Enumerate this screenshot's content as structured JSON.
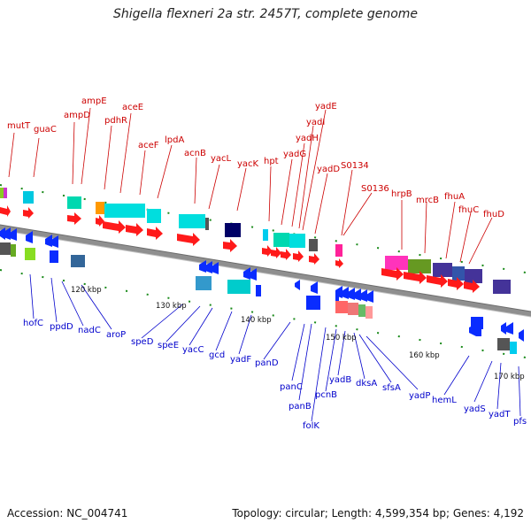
{
  "title": "Shigella flexneri 2a str. 2457T, complete genome",
  "footer": {
    "accession": "Accession: NC_004741",
    "topology": "Topology: circular; Length: 4,599,354 bp; Genes: 4,192"
  },
  "scale_labels": [
    "120 kbp",
    "130 kbp",
    "140 kbp",
    "150 kbp",
    "160 kbp",
    "170 kbp"
  ],
  "top_genes": [
    "mutT",
    "guaC",
    "ampD",
    "ampE",
    "pdhR",
    "aceE",
    "aceF",
    "lpdA",
    "acnB",
    "yacL",
    "yacK",
    "hpt",
    "yadG",
    "yadH",
    "yadI",
    "yadE",
    "yadD",
    "S0134",
    "S0136",
    "hrpB",
    "mrcB",
    "fhuA",
    "fhuC",
    "fhuD"
  ],
  "bottom_genes": [
    "hofC",
    "ppdD",
    "nadC",
    "aroP",
    "speD",
    "speE",
    "yacC",
    "gcd",
    "yadF",
    "panD",
    "panC",
    "panB",
    "folK",
    "pcnB",
    "yadB",
    "dksA",
    "sfsA",
    "yadP",
    "hemL",
    "yadS",
    "yadT",
    "pfs"
  ],
  "colors": {
    "forward_cds": "#ff1a1a",
    "reverse_cds": "#0a2cff",
    "top_label": "#cc0000",
    "bottom_label": "#0000cc",
    "backbone": "#8f8f8f",
    "tick": "#1a8a1a"
  }
}
